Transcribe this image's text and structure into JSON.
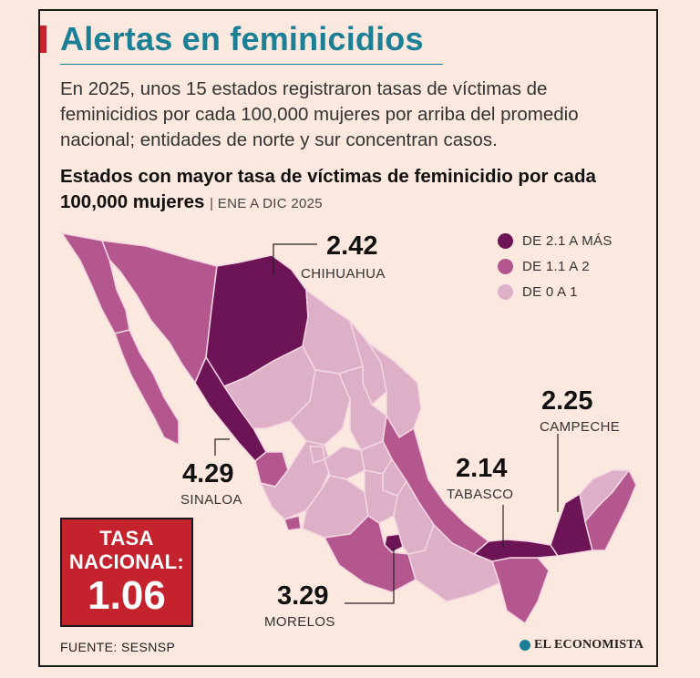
{
  "title": "Alertas en feminicidios",
  "lede": "En 2025, unos 15 estados registraron tasas de víctimas de feminicidios por cada 100,000 mujeres por arriba del promedio nacional; entidades de norte y sur concentran casos.",
  "subtitle": {
    "text": "Estados con mayor tasa de víctimas de feminicidio por cada 100,000 mujeres",
    "period": "| ENE A DIC 2025"
  },
  "legend": [
    {
      "label": "DE 2.1 A MÁS",
      "color": "#6d1456"
    },
    {
      "label": "DE 1.1 A 2",
      "color": "#b5578f"
    },
    {
      "label": "DE 0 A 1",
      "color": "#deb0c7"
    }
  ],
  "callouts": [
    {
      "value": "2.42",
      "state": "CHIHUAHUA"
    },
    {
      "value": "2.25",
      "state": "CAMPECHE"
    },
    {
      "value": "4.29",
      "state": "SINALOA"
    },
    {
      "value": "2.14",
      "state": "TABASCO"
    },
    {
      "value": "3.29",
      "state": "MORELOS"
    }
  ],
  "national": {
    "label": "TASA NACIONAL:",
    "value": "1.06"
  },
  "source": "FUENTE: SESNSP",
  "brand": "EL ECONOMISTA",
  "colors": {
    "title": "#1b7f95",
    "accent": "#c4222d",
    "high": "#6d1456",
    "mid": "#b5578f",
    "low": "#deb0c7",
    "background": "#fbe8de"
  }
}
